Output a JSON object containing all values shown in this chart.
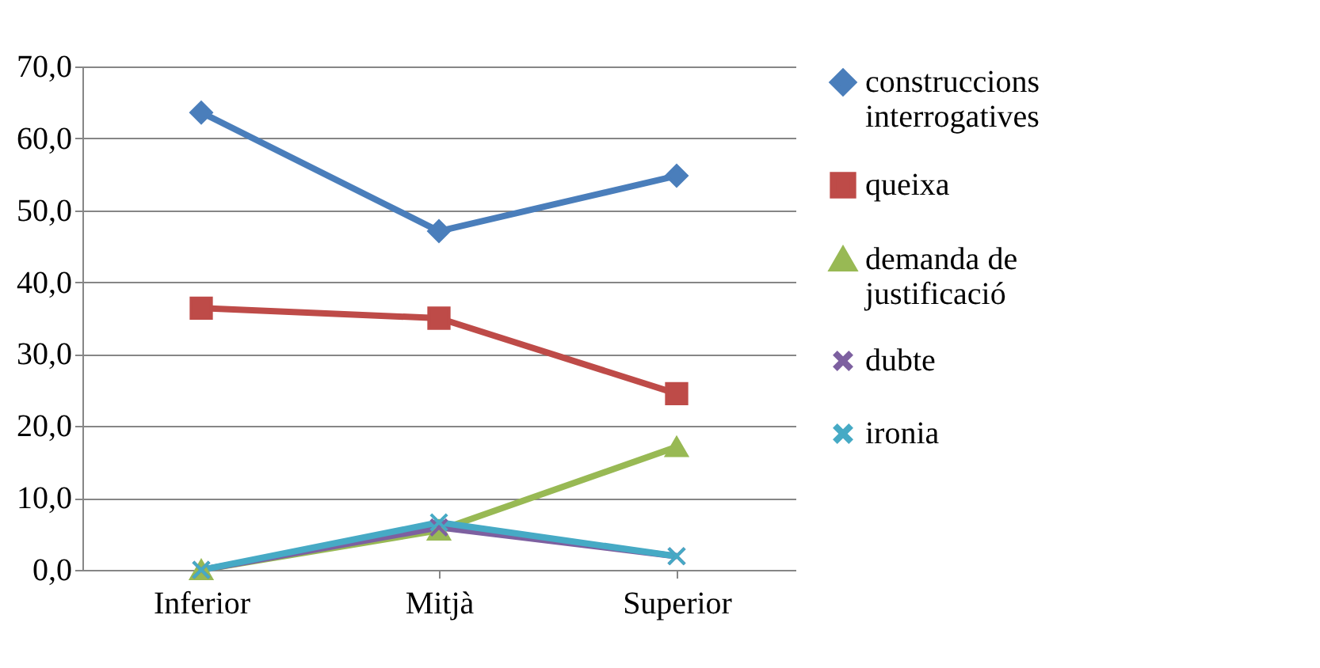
{
  "chart_data": {
    "type": "line",
    "categories": [
      "Inferior",
      "Mitjà",
      "Superior"
    ],
    "series": [
      {
        "name": "construccions interrogatives",
        "color": "#4a7ebb",
        "marker": "diamond",
        "values": [
          63.6,
          47.1,
          54.8
        ]
      },
      {
        "name": "queixa",
        "color": "#be4b48",
        "marker": "square",
        "values": [
          36.4,
          35.0,
          24.5
        ]
      },
      {
        "name": "demanda de justificació",
        "color": "#98b954",
        "marker": "triangle",
        "values": [
          0,
          5.5,
          17.1
        ]
      },
      {
        "name": "dubte",
        "color": "#7d60a0",
        "marker": "cross",
        "values": [
          0,
          5.9,
          1.9
        ]
      },
      {
        "name": "ironia",
        "color": "#46aac5",
        "marker": "cross",
        "values": [
          0,
          6.6,
          1.9
        ]
      }
    ],
    "ylim": [
      0,
      70
    ],
    "yticks": [
      {
        "value": 0,
        "label": "0,0"
      },
      {
        "value": 10,
        "label": "10,0"
      },
      {
        "value": 20,
        "label": "20,0"
      },
      {
        "value": 30,
        "label": "30,0"
      },
      {
        "value": 40,
        "label": "40,0"
      },
      {
        "value": 50,
        "label": "50,0"
      },
      {
        "value": 60,
        "label": "60,0"
      },
      {
        "value": 70,
        "label": "70,0"
      }
    ],
    "grid": "y",
    "legend": "right",
    "line_style": "solid"
  }
}
